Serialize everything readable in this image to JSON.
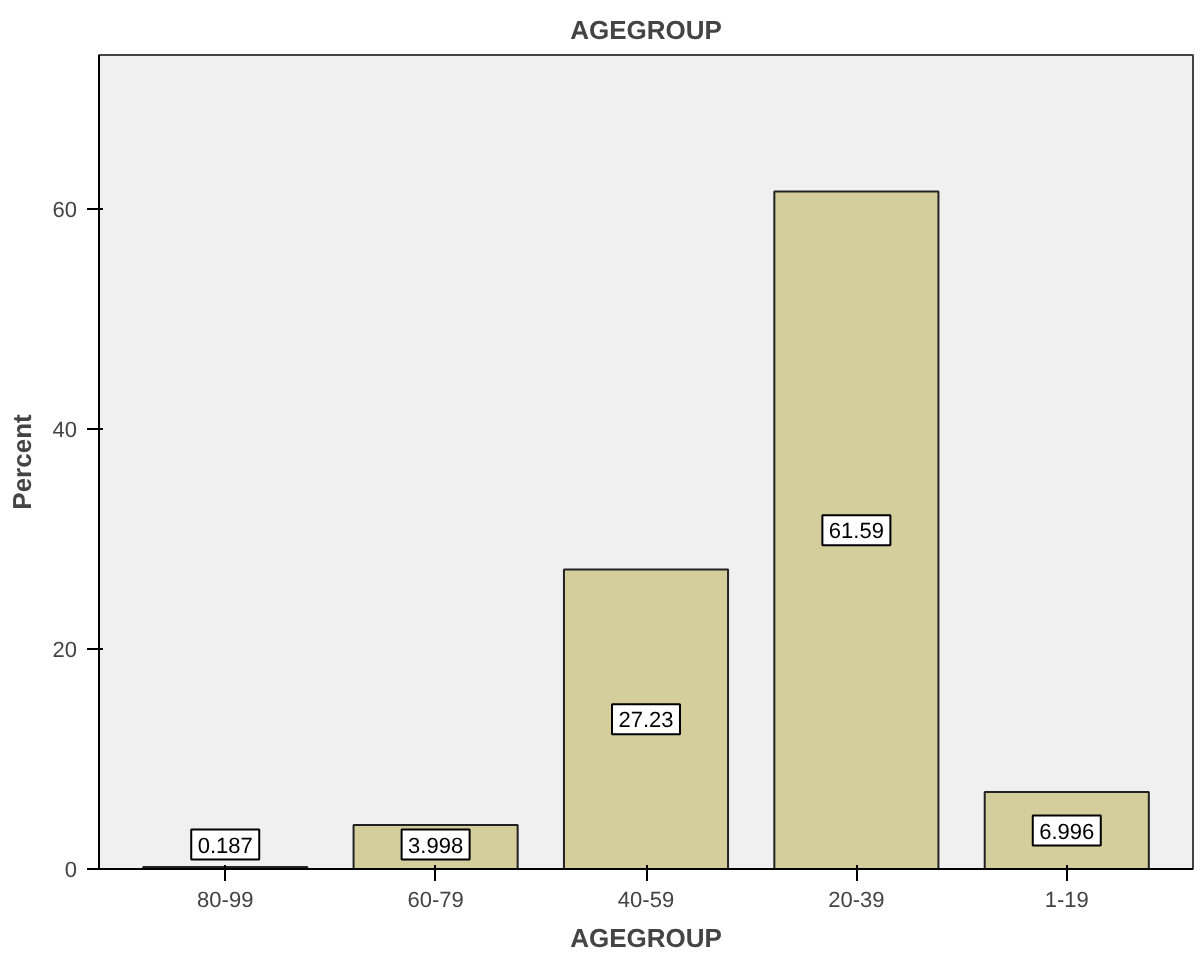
{
  "chart_data": {
    "type": "bar",
    "title": "AGEGROUP",
    "xlabel": "AGEGROUP",
    "ylabel": "Percent",
    "categories": [
      "80-99",
      "60-79",
      "40-59",
      "20-39",
      "1-19"
    ],
    "values": [
      0.187,
      3.998,
      27.23,
      61.59,
      6.996
    ],
    "color": "#d3ce9b",
    "ylim": [
      0,
      74
    ],
    "yticks": [
      0,
      20,
      40,
      60
    ],
    "grid": false,
    "data_labels": true
  }
}
